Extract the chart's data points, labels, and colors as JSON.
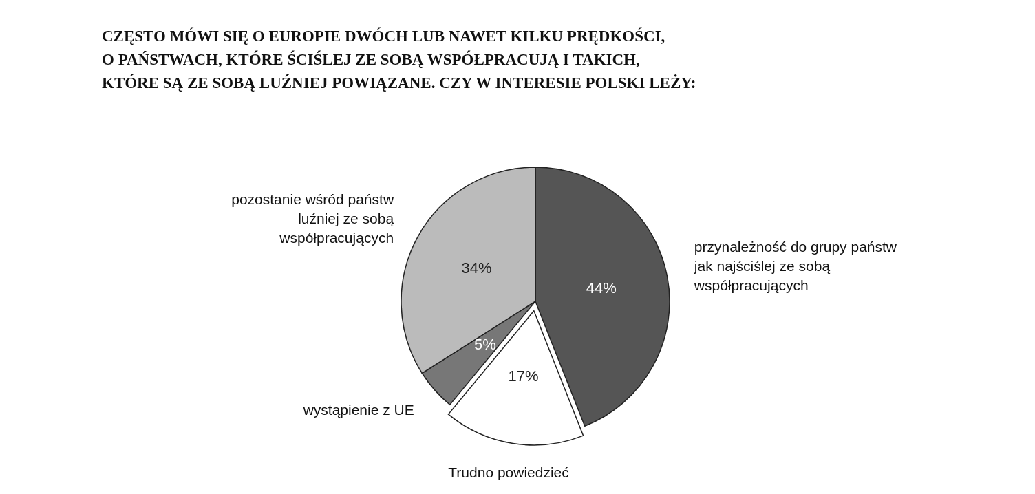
{
  "chart_data": {
    "type": "pie",
    "title": "CZĘSTO MÓWI SIĘ O EUROPIE DWÓCH LUB NAWET KILKU PRĘDKOŚCI,\nO PAŃSTWACH, KTÓRE ŚCIŚLEJ ZE SOBĄ WSPÓŁPRACUJĄ I TAKICH,\nKTÓRE SĄ ZE SOBĄ LUŹNIEJ POWIĄZANE. CZY W INTERESIE POLSKI LEŻY:",
    "categories": [
      "przynależność do grupy państw jak najściślej ze sobą współpracujących",
      "Trudno powiedzieć",
      "wystąpienie z UE",
      "pozostanie wśród państw luźniej ze sobą współpracujących"
    ],
    "values": [
      44,
      17,
      5,
      34
    ],
    "colors": [
      "#555555",
      "#ffffff",
      "#777777",
      "#bbbbbb"
    ],
    "value_labels": [
      "44%",
      "17%",
      "5%",
      "34%"
    ]
  }
}
